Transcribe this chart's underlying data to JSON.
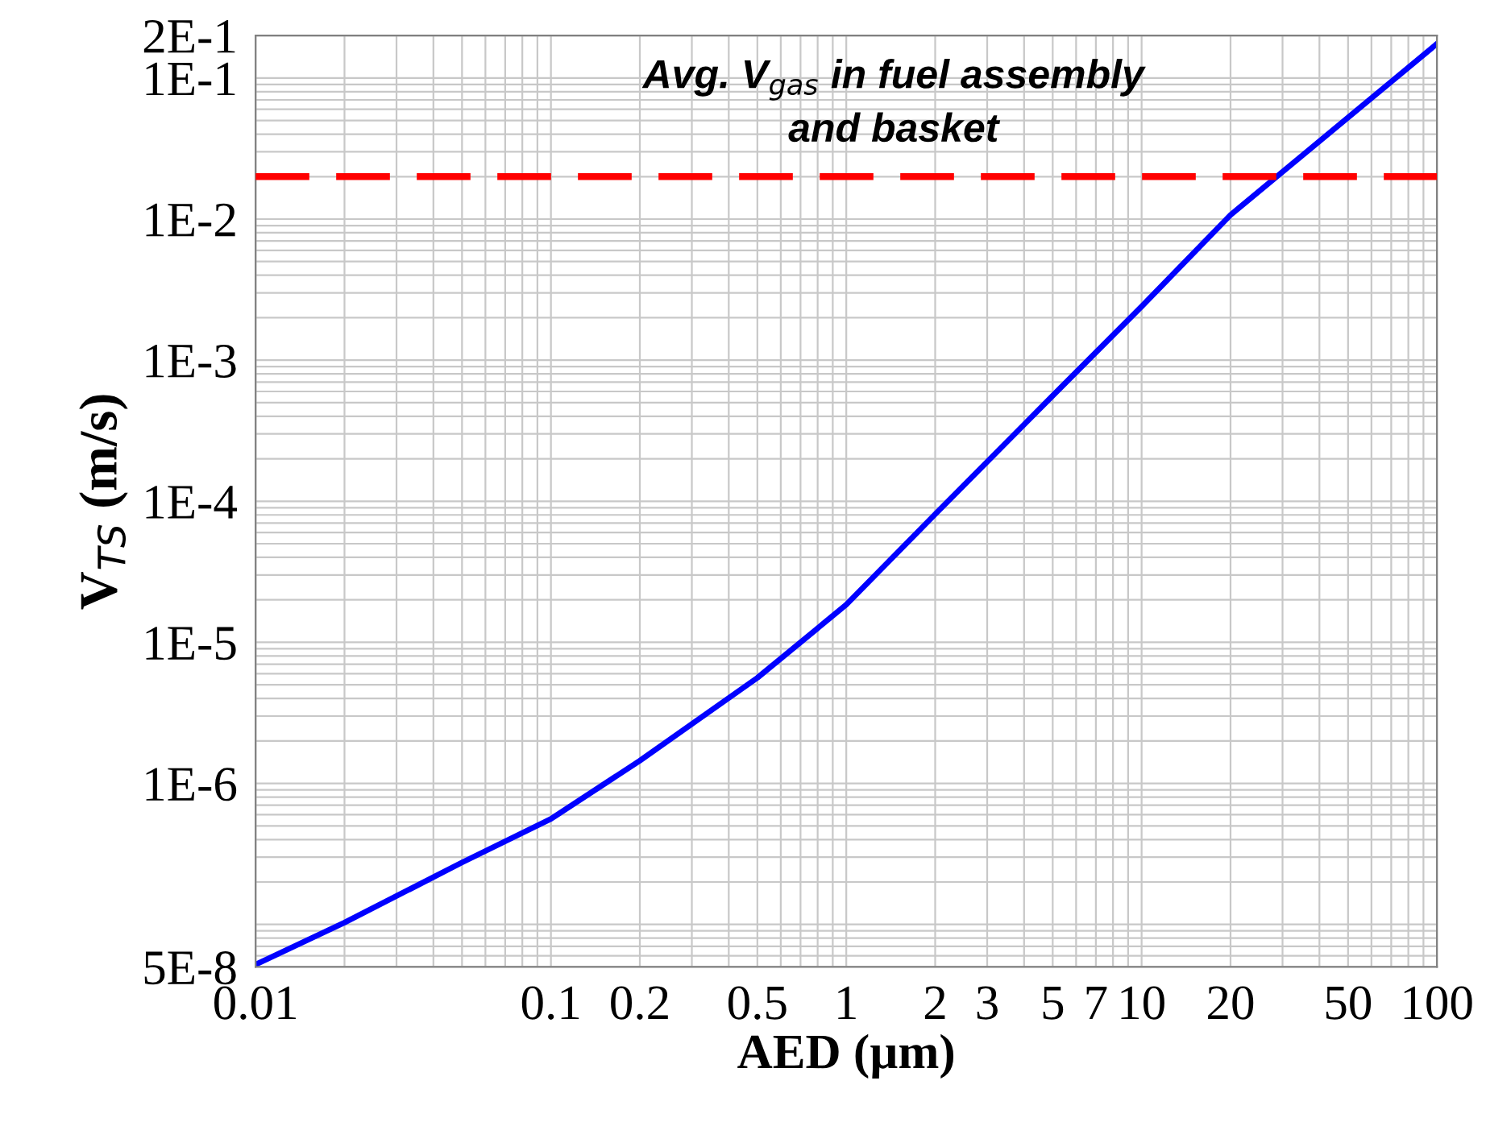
{
  "chart_data": {
    "type": "line",
    "xlabel": "AED (µm)",
    "ylabel": "V$_{TS}$ (m/s)",
    "log": "xy",
    "grid": true,
    "legend": false,
    "marker": "none",
    "line_style": "solid",
    "annotations": [
      "Avg. V$_{gas}$ in fuel assembly\nand basket"
    ],
    "x": [
      0.01,
      0.02,
      0.05,
      0.1,
      0.2,
      0.5,
      1,
      2,
      5,
      10,
      20,
      100
    ],
    "series": [
      {
        "color": "#0000ff",
        "values": [
          5.2e-08,
          1.03e-07,
          2.75e-07,
          5.6e-07,
          1.45e-06,
          5.6e-06,
          1.85e-05,
          8.1e-05,
          0.00056,
          0.0024,
          0.0107,
          0.175
        ]
      }
    ],
    "ref_lines": [
      {
        "axis": "y",
        "value": 0.02,
        "color": "#ff0000",
        "line_style": "dashed"
      }
    ],
    "xlim": [
      0.01,
      100
    ],
    "ylim": [
      5e-08,
      0.2
    ],
    "xticks": [
      0.01,
      0.1,
      0.2,
      0.5,
      1,
      2,
      3,
      5,
      7,
      10,
      20,
      50,
      100
    ],
    "yticks": [
      {
        "value": 5e-08,
        "label": "5E-8"
      },
      {
        "value": 1e-06,
        "label": "1E-6"
      },
      {
        "value": 1e-05,
        "label": "1E-5"
      },
      {
        "value": 0.0001,
        "label": "1E-4"
      },
      {
        "value": 0.001,
        "label": "1E-3"
      },
      {
        "value": 0.01,
        "label": "1E-2"
      },
      {
        "value": 0.1,
        "label": "1E-1"
      },
      {
        "value": 0.2,
        "label": "2E-1"
      }
    ]
  }
}
